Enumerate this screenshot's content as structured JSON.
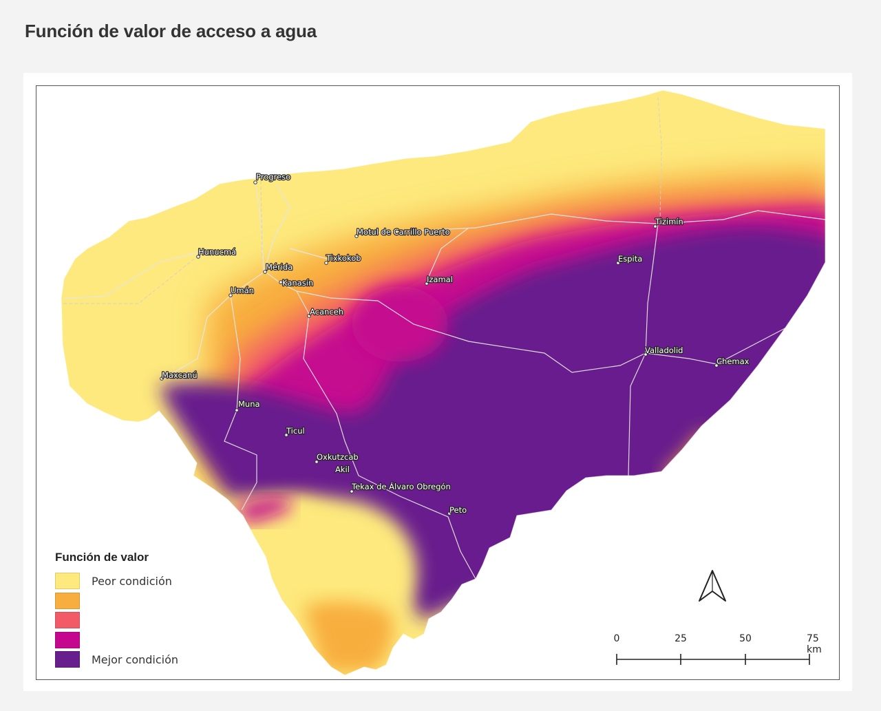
{
  "title": "Función de valor de acceso a agua",
  "legend": {
    "title": "Función de valor",
    "items": [
      {
        "label": "Peor condición",
        "color": "#fde97d"
      },
      {
        "label": "",
        "color": "#f8ae3e"
      },
      {
        "label": "",
        "color": "#f25a68"
      },
      {
        "label": "",
        "color": "#c5078f"
      },
      {
        "label": "Mejor condición",
        "color": "#671f8d"
      }
    ]
  },
  "cities": [
    {
      "name": "Progreso"
    },
    {
      "name": "Motul de Carrillo Puerto"
    },
    {
      "name": "Tizimín"
    },
    {
      "name": "Hunucmá"
    },
    {
      "name": "Mérida"
    },
    {
      "name": "Tixkokob"
    },
    {
      "name": "Kanasín"
    },
    {
      "name": "Umán"
    },
    {
      "name": "Izamal"
    },
    {
      "name": "Espita"
    },
    {
      "name": "Acanceh"
    },
    {
      "name": "Valladolid"
    },
    {
      "name": "Chemax"
    },
    {
      "name": "Maxcanú"
    },
    {
      "name": "Muna"
    },
    {
      "name": "Ticul"
    },
    {
      "name": "Oxkutzcab"
    },
    {
      "name": "Akil"
    },
    {
      "name": "Tekax de Álvaro Obregón"
    },
    {
      "name": "Peto"
    }
  ],
  "scale": {
    "ticks": [
      "0",
      "25",
      "50",
      "75 km"
    ]
  },
  "north_arrow": {
    "icon": "north-arrow-icon"
  }
}
